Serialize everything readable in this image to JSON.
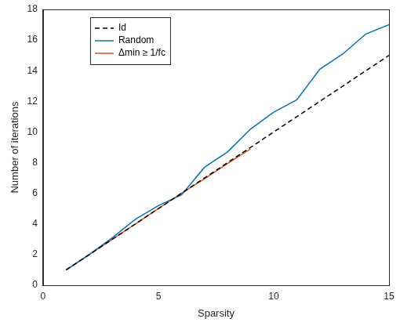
{
  "chart_data": {
    "type": "line",
    "x_label": "Sparsity",
    "y_label": "Number of iterations",
    "xlim": [
      0,
      15
    ],
    "xticks": [
      0,
      5,
      10,
      15
    ],
    "ylim": [
      0,
      18
    ],
    "yticks": [
      0,
      2,
      4,
      6,
      8,
      10,
      12,
      14,
      16,
      18
    ],
    "grid": false,
    "legend": "upper left",
    "series": [
      {
        "name": "Id",
        "color": "#000000",
        "line_style": "dashed",
        "x": [
          1,
          2,
          3,
          4,
          5,
          6,
          7,
          8,
          9,
          10,
          11,
          12,
          13,
          14,
          15
        ],
        "values": [
          1,
          2,
          3,
          4,
          5,
          6,
          7,
          8,
          9,
          10,
          11,
          12,
          13,
          14,
          15
        ]
      },
      {
        "name": "Random",
        "color": "#0072bd",
        "line_style": "solid",
        "x": [
          1,
          2,
          3,
          4,
          5,
          6,
          7,
          8,
          9,
          10,
          11,
          12,
          13,
          14,
          15
        ],
        "values": [
          1,
          2,
          3.1,
          4.3,
          5.2,
          5.9,
          7.7,
          8.7,
          10.2,
          11.3,
          12.1,
          14.1,
          15.1,
          16.4,
          17
        ]
      },
      {
        "name": "Δmin ≥ 1/fc",
        "color": "#d95319",
        "line_style": "solid",
        "x": [
          1,
          2,
          3,
          4,
          5,
          6,
          7,
          8,
          9
        ],
        "values": [
          1,
          2,
          3,
          4,
          5,
          6,
          6.95,
          7.95,
          8.9
        ]
      }
    ]
  }
}
